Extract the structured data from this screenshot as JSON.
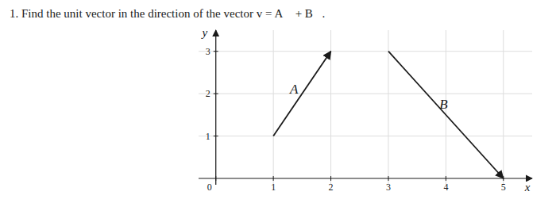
{
  "chart_data": {
    "type": "vector",
    "title": "1. Find the unit vector in the direction of the vector v = A⃗ + B⃗.",
    "series": [
      {
        "x": [
          1,
          2
        ],
        "values": [
          1,
          3
        ]
      },
      {
        "x": [
          3,
          5
        ],
        "values": [
          3,
          0
        ]
      }
    ],
    "annotations": [
      {
        "text": "A⃗",
        "x": 1.45,
        "y": 2.1
      },
      {
        "text": "B⃗",
        "x": 4.05,
        "y": 1.75
      }
    ],
    "x_label": "x",
    "y_label": "y",
    "xlim": [
      -0.3,
      5.5
    ],
    "ylim": [
      -0.15,
      3.5
    ],
    "xticks": [
      0,
      1,
      2,
      3,
      4,
      5
    ],
    "yticks": [
      1,
      2,
      3
    ],
    "grid": true,
    "color": "#1a1a1a"
  }
}
